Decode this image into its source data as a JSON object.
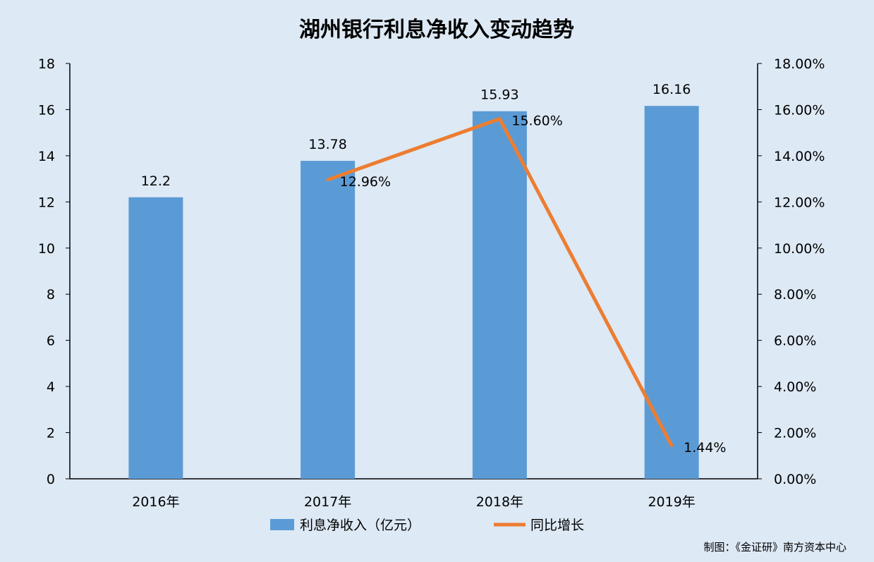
{
  "chart_data": {
    "type": "bar",
    "title": "湖州银行利息净收入变动趋势",
    "categories": [
      "2016年",
      "2017年",
      "2018年",
      "2019年"
    ],
    "series": [
      {
        "name": "利息净收入（亿元）",
        "type": "bar",
        "axis": "left",
        "color": "#5b9bd5",
        "values": [
          12.2,
          13.78,
          15.93,
          16.16
        ],
        "labels": [
          "12.2",
          "13.78",
          "15.93",
          "16.16"
        ]
      },
      {
        "name": "同比增长",
        "type": "line",
        "axis": "right",
        "color": "#ed7d31",
        "values": [
          null,
          12.96,
          15.6,
          1.44
        ],
        "labels": [
          "",
          "12.96%",
          "15.60%",
          "1.44%"
        ]
      }
    ],
    "y_left": {
      "min": 0,
      "max": 18,
      "ticks": [
        "0",
        "2",
        "4",
        "6",
        "8",
        "10",
        "12",
        "14",
        "16",
        "18"
      ]
    },
    "y_right": {
      "min": 0,
      "max": 18,
      "ticks": [
        "0.00%",
        "2.00%",
        "4.00%",
        "6.00%",
        "8.00%",
        "10.00%",
        "12.00%",
        "14.00%",
        "16.00%",
        "18.00%"
      ]
    },
    "legend_position": "bottom",
    "grid": false
  },
  "credit": "制图：《金证研》南方资本中心",
  "colors": {
    "background": "#dde9f5",
    "axis": "#000000"
  }
}
